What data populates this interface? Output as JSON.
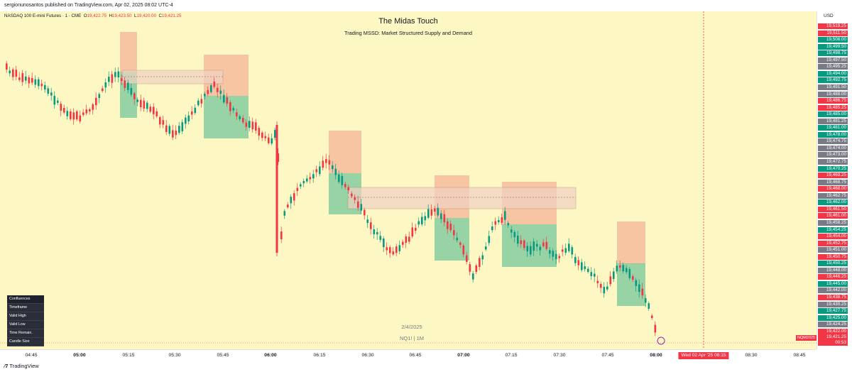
{
  "publisher": "sergionunosantos published on TradingView.com, Apr 02, 2025 08:02 UTC-4",
  "symbol": {
    "name": "NASDAQ 100 E-mini Futures · 1 · CME",
    "o_label": "O",
    "o": "19,422.75",
    "h_label": "H",
    "h": "19,423.50",
    "l_label": "L",
    "l": "19,420.00",
    "c_label": "C",
    "c": "19,421.25"
  },
  "title": "The Midas Touch",
  "subtitle": "Trading MSSD: Market Structured Supply and Demand",
  "watermark": {
    "date": "2/4/2025",
    "tf": "NQ1! | 1M"
  },
  "currency": "USD",
  "confluences": [
    "Confluences",
    "Timeframe",
    "Valid High",
    "Valid Low",
    "Time Remain.",
    "Candle Size"
  ],
  "price_labels": [
    {
      "v": "19,519.25",
      "c": "#f23645"
    },
    {
      "v": "19,511.50",
      "c": "#f23645"
    },
    {
      "v": "19,508.00",
      "c": "#089981"
    },
    {
      "v": "19,499.50",
      "c": "#089981"
    },
    {
      "v": "19,498.75",
      "c": "#089981"
    },
    {
      "v": "19,497.50",
      "c": "#787b86"
    },
    {
      "v": "19,495.25",
      "c": "#787b86"
    },
    {
      "v": "19,494.00",
      "c": "#089981"
    },
    {
      "v": "19,492.75",
      "c": "#089981"
    },
    {
      "v": "19,491.50",
      "c": "#787b86"
    },
    {
      "v": "19,488.00",
      "c": "#787b86"
    },
    {
      "v": "19,486.75",
      "c": "#f23645"
    },
    {
      "v": "19,485.25",
      "c": "#f23645"
    },
    {
      "v": "19,485.00",
      "c": "#089981"
    },
    {
      "v": "19,481.25",
      "c": "#787b86"
    },
    {
      "v": "19,481.00",
      "c": "#089981"
    },
    {
      "v": "19,478.00",
      "c": "#089981"
    },
    {
      "v": "19,474.75",
      "c": "#787b86"
    },
    {
      "v": "19,474.00",
      "c": "#787b86"
    },
    {
      "v": "19,473.00",
      "c": "#787b86"
    },
    {
      "v": "19,472.75",
      "c": "#787b86"
    },
    {
      "v": "19,470.25",
      "c": "#089981"
    },
    {
      "v": "19,469.25",
      "c": "#f23645"
    },
    {
      "v": "19,468.75",
      "c": "#787b86"
    },
    {
      "v": "19,468.00",
      "c": "#f23645"
    },
    {
      "v": "19,462.75",
      "c": "#787b86"
    },
    {
      "v": "19,462.00",
      "c": "#089981"
    },
    {
      "v": "19,461.50",
      "c": "#f23645"
    },
    {
      "v": "19,461.00",
      "c": "#f23645"
    },
    {
      "v": "19,458.25",
      "c": "#787b86"
    },
    {
      "v": "19,454.25",
      "c": "#089981"
    },
    {
      "v": "19,454.00",
      "c": "#f23645"
    },
    {
      "v": "19,452.75",
      "c": "#f23645"
    },
    {
      "v": "19,451.00",
      "c": "#787b86"
    },
    {
      "v": "19,450.75",
      "c": "#f23645"
    },
    {
      "v": "19,450.25",
      "c": "#089981"
    },
    {
      "v": "19,448.00",
      "c": "#787b86"
    },
    {
      "v": "19,446.25",
      "c": "#f23645"
    },
    {
      "v": "19,445.00",
      "c": "#089981"
    },
    {
      "v": "19,442.00",
      "c": "#787b86"
    },
    {
      "v": "19,438.75",
      "c": "#f23645"
    },
    {
      "v": "19,430.25",
      "c": "#787b86"
    },
    {
      "v": "19,427.75",
      "c": "#089981"
    },
    {
      "v": "19,425.00",
      "c": "#089981"
    },
    {
      "v": "19,424.25",
      "c": "#787b86"
    },
    {
      "v": "19,422.00",
      "c": "#f23645"
    }
  ],
  "current_price": {
    "v": "19,421.25",
    "countdown": "00:53"
  },
  "nq_tag": "NQM2025",
  "time_labels": [
    {
      "t": "04:45",
      "b": false
    },
    {
      "t": "05:00",
      "b": true
    },
    {
      "t": "05:15",
      "b": false
    },
    {
      "t": "05:30",
      "b": false
    },
    {
      "t": "05:45",
      "b": false
    },
    {
      "t": "06:00",
      "b": true
    },
    {
      "t": "06:15",
      "b": false
    },
    {
      "t": "06:30",
      "b": false
    },
    {
      "t": "06:45",
      "b": false
    },
    {
      "t": "07:00",
      "b": true
    },
    {
      "t": "07:15",
      "b": false
    },
    {
      "t": "07:30",
      "b": false
    },
    {
      "t": "07:45",
      "b": false
    },
    {
      "t": "08:00",
      "b": true
    },
    {
      "t": "08:30",
      "b": false
    },
    {
      "t": "08:45",
      "b": false
    }
  ],
  "time_cursor": "Wed 02 Apr '25   08:15",
  "footer_brand": "TradingView",
  "colors": {
    "bull": "#089981",
    "bear": "#f23645",
    "bg": "#fdf7c3",
    "supply": "#f5b899",
    "demand": "#6cc39a",
    "zone": "#f0d2c2"
  }
}
